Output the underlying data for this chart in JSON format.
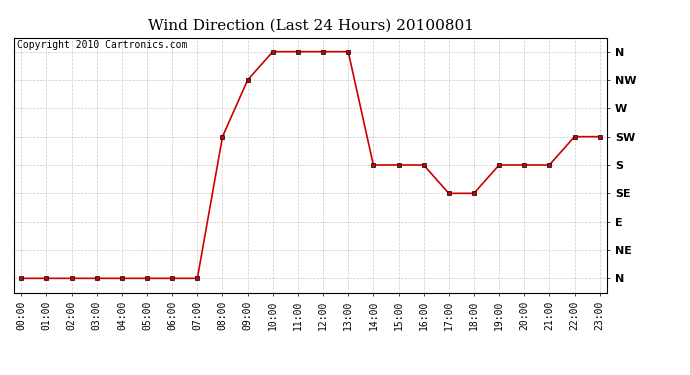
{
  "title": "Wind Direction (Last 24 Hours) 20100801",
  "copyright": "Copyright 2010 Cartronics.com",
  "x_labels": [
    "00:00",
    "01:00",
    "02:00",
    "03:00",
    "04:00",
    "05:00",
    "06:00",
    "07:00",
    "08:00",
    "09:00",
    "10:00",
    "11:00",
    "12:00",
    "13:00",
    "14:00",
    "15:00",
    "16:00",
    "17:00",
    "18:00",
    "19:00",
    "20:00",
    "21:00",
    "22:00",
    "23:00"
  ],
  "y_labels": [
    "N",
    "NE",
    "E",
    "SE",
    "S",
    "SW",
    "W",
    "NW",
    "N"
  ],
  "y_positions": [
    0,
    1,
    2,
    3,
    4,
    5,
    6,
    7,
    8
  ],
  "data_x": [
    0,
    1,
    2,
    3,
    4,
    5,
    6,
    7,
    8,
    9,
    10,
    11,
    12,
    13,
    14,
    15,
    16,
    17,
    18,
    19,
    20,
    21,
    22,
    23
  ],
  "data_y": [
    0,
    0,
    0,
    0,
    0,
    0,
    0,
    0,
    5,
    7,
    8,
    8,
    8,
    8,
    4,
    4,
    4,
    3,
    3,
    4,
    4,
    4,
    5,
    5
  ],
  "line_color": "#cc0000",
  "marker": "s",
  "marker_size": 3,
  "bg_color": "#ffffff",
  "plot_bg_color": "#ffffff",
  "grid_color": "#c8c8c8",
  "title_fontsize": 11,
  "copyright_fontsize": 7,
  "tick_fontsize": 7,
  "ytick_fontsize": 8
}
